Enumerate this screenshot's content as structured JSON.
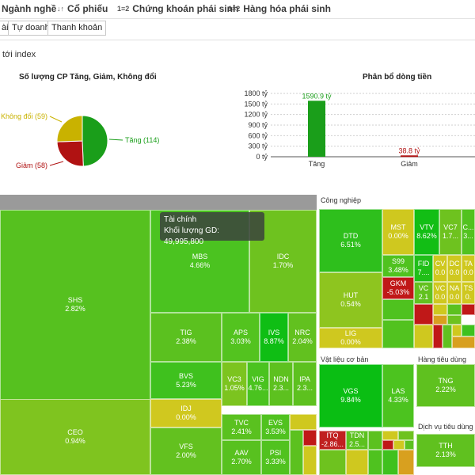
{
  "nav": {
    "items": [
      {
        "label": "Ngành nghề",
        "icon": ""
      },
      {
        "label": "Cổ phiếu",
        "icon": "↓↑"
      },
      {
        "label": "Chứng khoán phái sinh",
        "icon": "1≡2"
      },
      {
        "label": "Hàng hóa phái sinh",
        "icon": "1≡2"
      }
    ]
  },
  "subtabs": [
    "ài",
    "Tự doanh",
    "Thanh khoản"
  ],
  "index_link": "tới index",
  "pie": {
    "title": "Số lượng CP Tăng, Giảm, Không đổi",
    "slices": [
      {
        "label": "Tăng (114)",
        "value": 114,
        "color": "#1a9e1a"
      },
      {
        "label": "Giảm (58)",
        "value": 58,
        "color": "#b01212"
      },
      {
        "label": "Không đổi (59)",
        "value": 59,
        "color": "#c9b200"
      }
    ]
  },
  "chart_data": {
    "type": "bar",
    "title": "Phân bổ dòng tiền",
    "categories": [
      "Tăng",
      "Giảm"
    ],
    "values": [
      1590.9,
      38.8
    ],
    "data_labels": [
      "1590.9 tỷ",
      "38.8 tỷ"
    ],
    "colors": [
      "#1a9e1a",
      "#b01212"
    ],
    "yticks": [
      "1800 tỷ",
      "1500 tỷ",
      "1200 tỷ",
      "900 tỷ",
      "600 tỷ",
      "300 tỷ",
      "0 tỷ"
    ],
    "ylim": [
      0,
      1800
    ],
    "grid": true
  },
  "heatmap": {
    "sectors": [
      "Công nghiệp",
      "Vật liệu cơ bản",
      "Hàng tiêu dùng",
      "Dịch vụ tiêu dùng"
    ],
    "tooltip": {
      "title": "Tài chính",
      "line": "Khối lượng GD:",
      "value": "49,995,800"
    },
    "cells": [
      {
        "t": "SHS",
        "v": "2.82%",
        "c": "#56c11f"
      },
      {
        "t": "CEO",
        "v": "0.94%",
        "c": "#7fc41f"
      },
      {
        "t": "MBS",
        "v": "4.66%",
        "c": "#4bc320"
      },
      {
        "t": "IDC",
        "v": "1.70%",
        "c": "#6ec21f"
      },
      {
        "t": "TIG",
        "v": "2.38%",
        "c": "#5bc11f"
      },
      {
        "t": "APS",
        "v": "3.03%",
        "c": "#53c31f"
      },
      {
        "t": "IVS",
        "v": "8.87%",
        "c": "#0fbe14"
      },
      {
        "t": "NRC",
        "v": "2.04%",
        "c": "#62c11f"
      },
      {
        "t": "BVS",
        "v": "5.23%",
        "c": "#3fc11e"
      },
      {
        "t": "VC3",
        "v": "1.05%",
        "c": "#7cc41f"
      },
      {
        "t": "VIG",
        "v": "4.76...",
        "c": "#4ac31f"
      },
      {
        "t": "NDN",
        "v": "2.3...",
        "c": "#5dc11f"
      },
      {
        "t": "IPA",
        "v": "2.3...",
        "c": "#5dc11f"
      },
      {
        "t": "IDJ",
        "v": "0.00%",
        "c": "#d0c81f"
      },
      {
        "t": "TVC",
        "v": "2.41%",
        "c": "#5ac11f"
      },
      {
        "t": "EVS",
        "v": "3.53%",
        "c": "#50c21f"
      },
      {
        "t": "VFS",
        "v": "2.00%",
        "c": "#63c11f"
      },
      {
        "t": "AAV",
        "v": "2.70%",
        "c": "#58c11f"
      },
      {
        "t": "PSI",
        "v": "3.33%",
        "c": "#51c21f"
      },
      {
        "t": "DTD",
        "v": "6.51%",
        "c": "#2ebf1c"
      },
      {
        "t": "HUT",
        "v": "0.54%",
        "c": "#8ec51f"
      },
      {
        "t": "LIG",
        "v": "0.00%",
        "c": "#cfc81f"
      },
      {
        "t": "MST",
        "v": "0.00%",
        "c": "#cfc81f"
      },
      {
        "t": "VTV",
        "v": "8.62%",
        "c": "#12be15"
      },
      {
        "t": "VC7",
        "v": "1.7...",
        "c": "#6ec21f"
      },
      {
        "t": "C...",
        "v": "3...",
        "c": "#52c21f"
      },
      {
        "t": "S99",
        "v": "3.48%",
        "c": "#50c21f"
      },
      {
        "t": "GKM",
        "v": "-5.03%",
        "c": "#c01818"
      },
      {
        "t": "FID",
        "v": "7....",
        "c": "#20bf18"
      },
      {
        "t": "CV",
        "v": "0.0",
        "c": "#cfc81f"
      },
      {
        "t": "DC",
        "v": "0.0",
        "c": "#cfc81f"
      },
      {
        "t": "TA",
        "v": "0.0",
        "c": "#cfc81f"
      },
      {
        "t": "VC",
        "v": "2.1",
        "c": "#62c11f"
      },
      {
        "t": "VC",
        "v": "0.0",
        "c": "#cfc81f"
      },
      {
        "t": "NA",
        "v": "0.0",
        "c": "#cfc81f"
      },
      {
        "t": "TS",
        "v": "0.",
        "c": "#cfc81f"
      },
      {
        "t": "VGS",
        "v": "9.84%",
        "c": "#0abe13"
      },
      {
        "t": "LAS",
        "v": "4.33%",
        "c": "#4cc31f"
      },
      {
        "t": "ITQ",
        "v": "-2.86...",
        "c": "#c02020"
      },
      {
        "t": "TDN",
        "v": "2.5...",
        "c": "#5cc11f"
      },
      {
        "t": "TNG",
        "v": "2.22%",
        "c": "#5fc11f"
      },
      {
        "t": "TTH",
        "v": "2.13%",
        "c": "#60c11f"
      }
    ]
  }
}
